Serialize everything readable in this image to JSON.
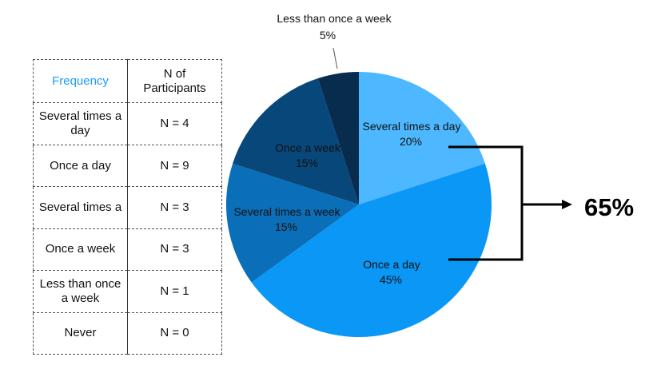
{
  "table": {
    "headers": [
      "Frequency",
      "N of Participants"
    ],
    "rows": [
      {
        "label": "Several times a day",
        "n": "N = 4"
      },
      {
        "label": "Once a day",
        "n": "N = 9"
      },
      {
        "label": "Several times a",
        "n": "N = 3"
      },
      {
        "label": "Once a week",
        "n": "N = 3"
      },
      {
        "label": "Less than once a week",
        "n": "N = 1"
      },
      {
        "label": "Never",
        "n": "N = 0"
      }
    ]
  },
  "chart_data": {
    "type": "pie",
    "slices": [
      {
        "label": "Several times a day",
        "value": 20,
        "value_label": "20%",
        "color": "#4db8ff"
      },
      {
        "label": "Once a day",
        "value": 45,
        "value_label": "45%",
        "color": "#0a97f5"
      },
      {
        "label": "Several times a week",
        "value": 15,
        "value_label": "15%",
        "color": "#0a6fb8"
      },
      {
        "label": "Once a week",
        "value": 15,
        "value_label": "15%",
        "color": "#08477a"
      },
      {
        "label": "Less than once a week",
        "value": 5,
        "value_label": "5%",
        "color": "#082c4d"
      }
    ],
    "annotation": {
      "value": "65%"
    }
  }
}
